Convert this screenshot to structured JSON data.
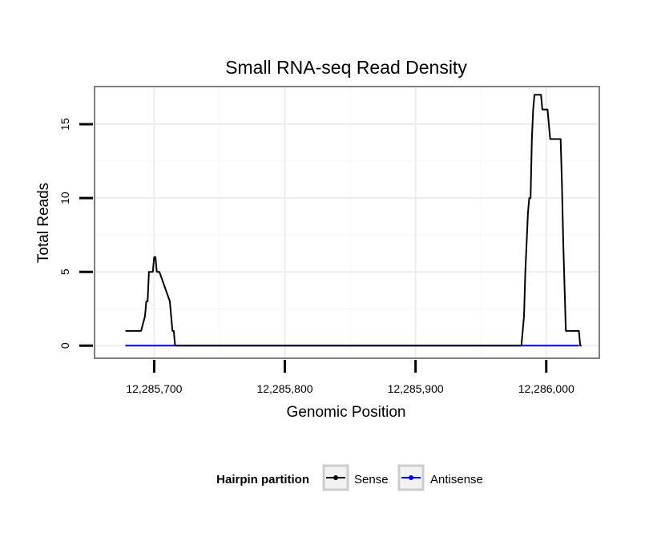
{
  "chart_data": {
    "type": "line",
    "title": "Small RNA-seq Read Density",
    "xlabel": "Genomic Position",
    "ylabel": "Total Reads",
    "xlim": [
      12285655,
      12286040
    ],
    "ylim": [
      -0.8,
      17.5
    ],
    "x_ticks": [
      12285700,
      12285800,
      12285900,
      12286000
    ],
    "x_tick_labels": [
      "12,285,700",
      "12,285,800",
      "12,285,900",
      "12,286,000"
    ],
    "y_ticks": [
      0,
      5,
      10,
      15
    ],
    "y_tick_labels": [
      "0",
      "5",
      "10",
      "15"
    ],
    "grid": true,
    "legend": {
      "title": "Hairpin partition",
      "position": "bottom",
      "entries": [
        "Sense",
        "Antisense"
      ]
    },
    "series": [
      {
        "name": "Sense",
        "color": "#000000",
        "x": [
          12285678,
          12285689,
          12285690,
          12285693,
          12285694,
          12285695,
          12285696,
          12285699,
          12285700,
          12285701,
          12285702,
          12285703,
          12285704,
          12285712,
          12285713,
          12285714,
          12285715,
          12285716,
          12285717,
          12285718,
          12285719,
          12285720,
          12285721,
          12285778,
          12285779,
          12285780,
          12285981,
          12285982,
          12285983,
          12285984,
          12285985,
          12285986,
          12285987,
          12285988,
          12285989,
          12285990,
          12285991,
          12285992,
          12285993,
          12285994,
          12285995,
          12285996,
          12285997,
          12286000,
          12286001,
          12286002,
          12286003,
          12286004,
          12286005,
          12286006,
          12286007,
          12286009,
          12286010,
          12286011,
          12286012,
          12286013,
          12286014,
          12286015,
          12286016,
          12286017,
          12286018,
          12286019,
          12286020,
          12286021,
          12286022,
          12286023,
          12286024,
          12286025,
          12286026,
          12286027
        ],
        "values": [
          1,
          1,
          1,
          2,
          3,
          3,
          5,
          5,
          6,
          6,
          5,
          5,
          5,
          3,
          2,
          1,
          1,
          0,
          0,
          0,
          0,
          0,
          0,
          0,
          0,
          0,
          0,
          1,
          2,
          5,
          7,
          9,
          10,
          10,
          14,
          16,
          17,
          17,
          17,
          17,
          17,
          17,
          16,
          16,
          16,
          15,
          14,
          14,
          14,
          14,
          14,
          14,
          14,
          14,
          11,
          7,
          4,
          1,
          1,
          1,
          1,
          1,
          1,
          1,
          1,
          1,
          1,
          1,
          0,
          0
        ]
      },
      {
        "name": "Antisense",
        "color": "#0000ff",
        "x": [
          12285678,
          12286025
        ],
        "values": [
          0,
          0
        ]
      }
    ]
  }
}
